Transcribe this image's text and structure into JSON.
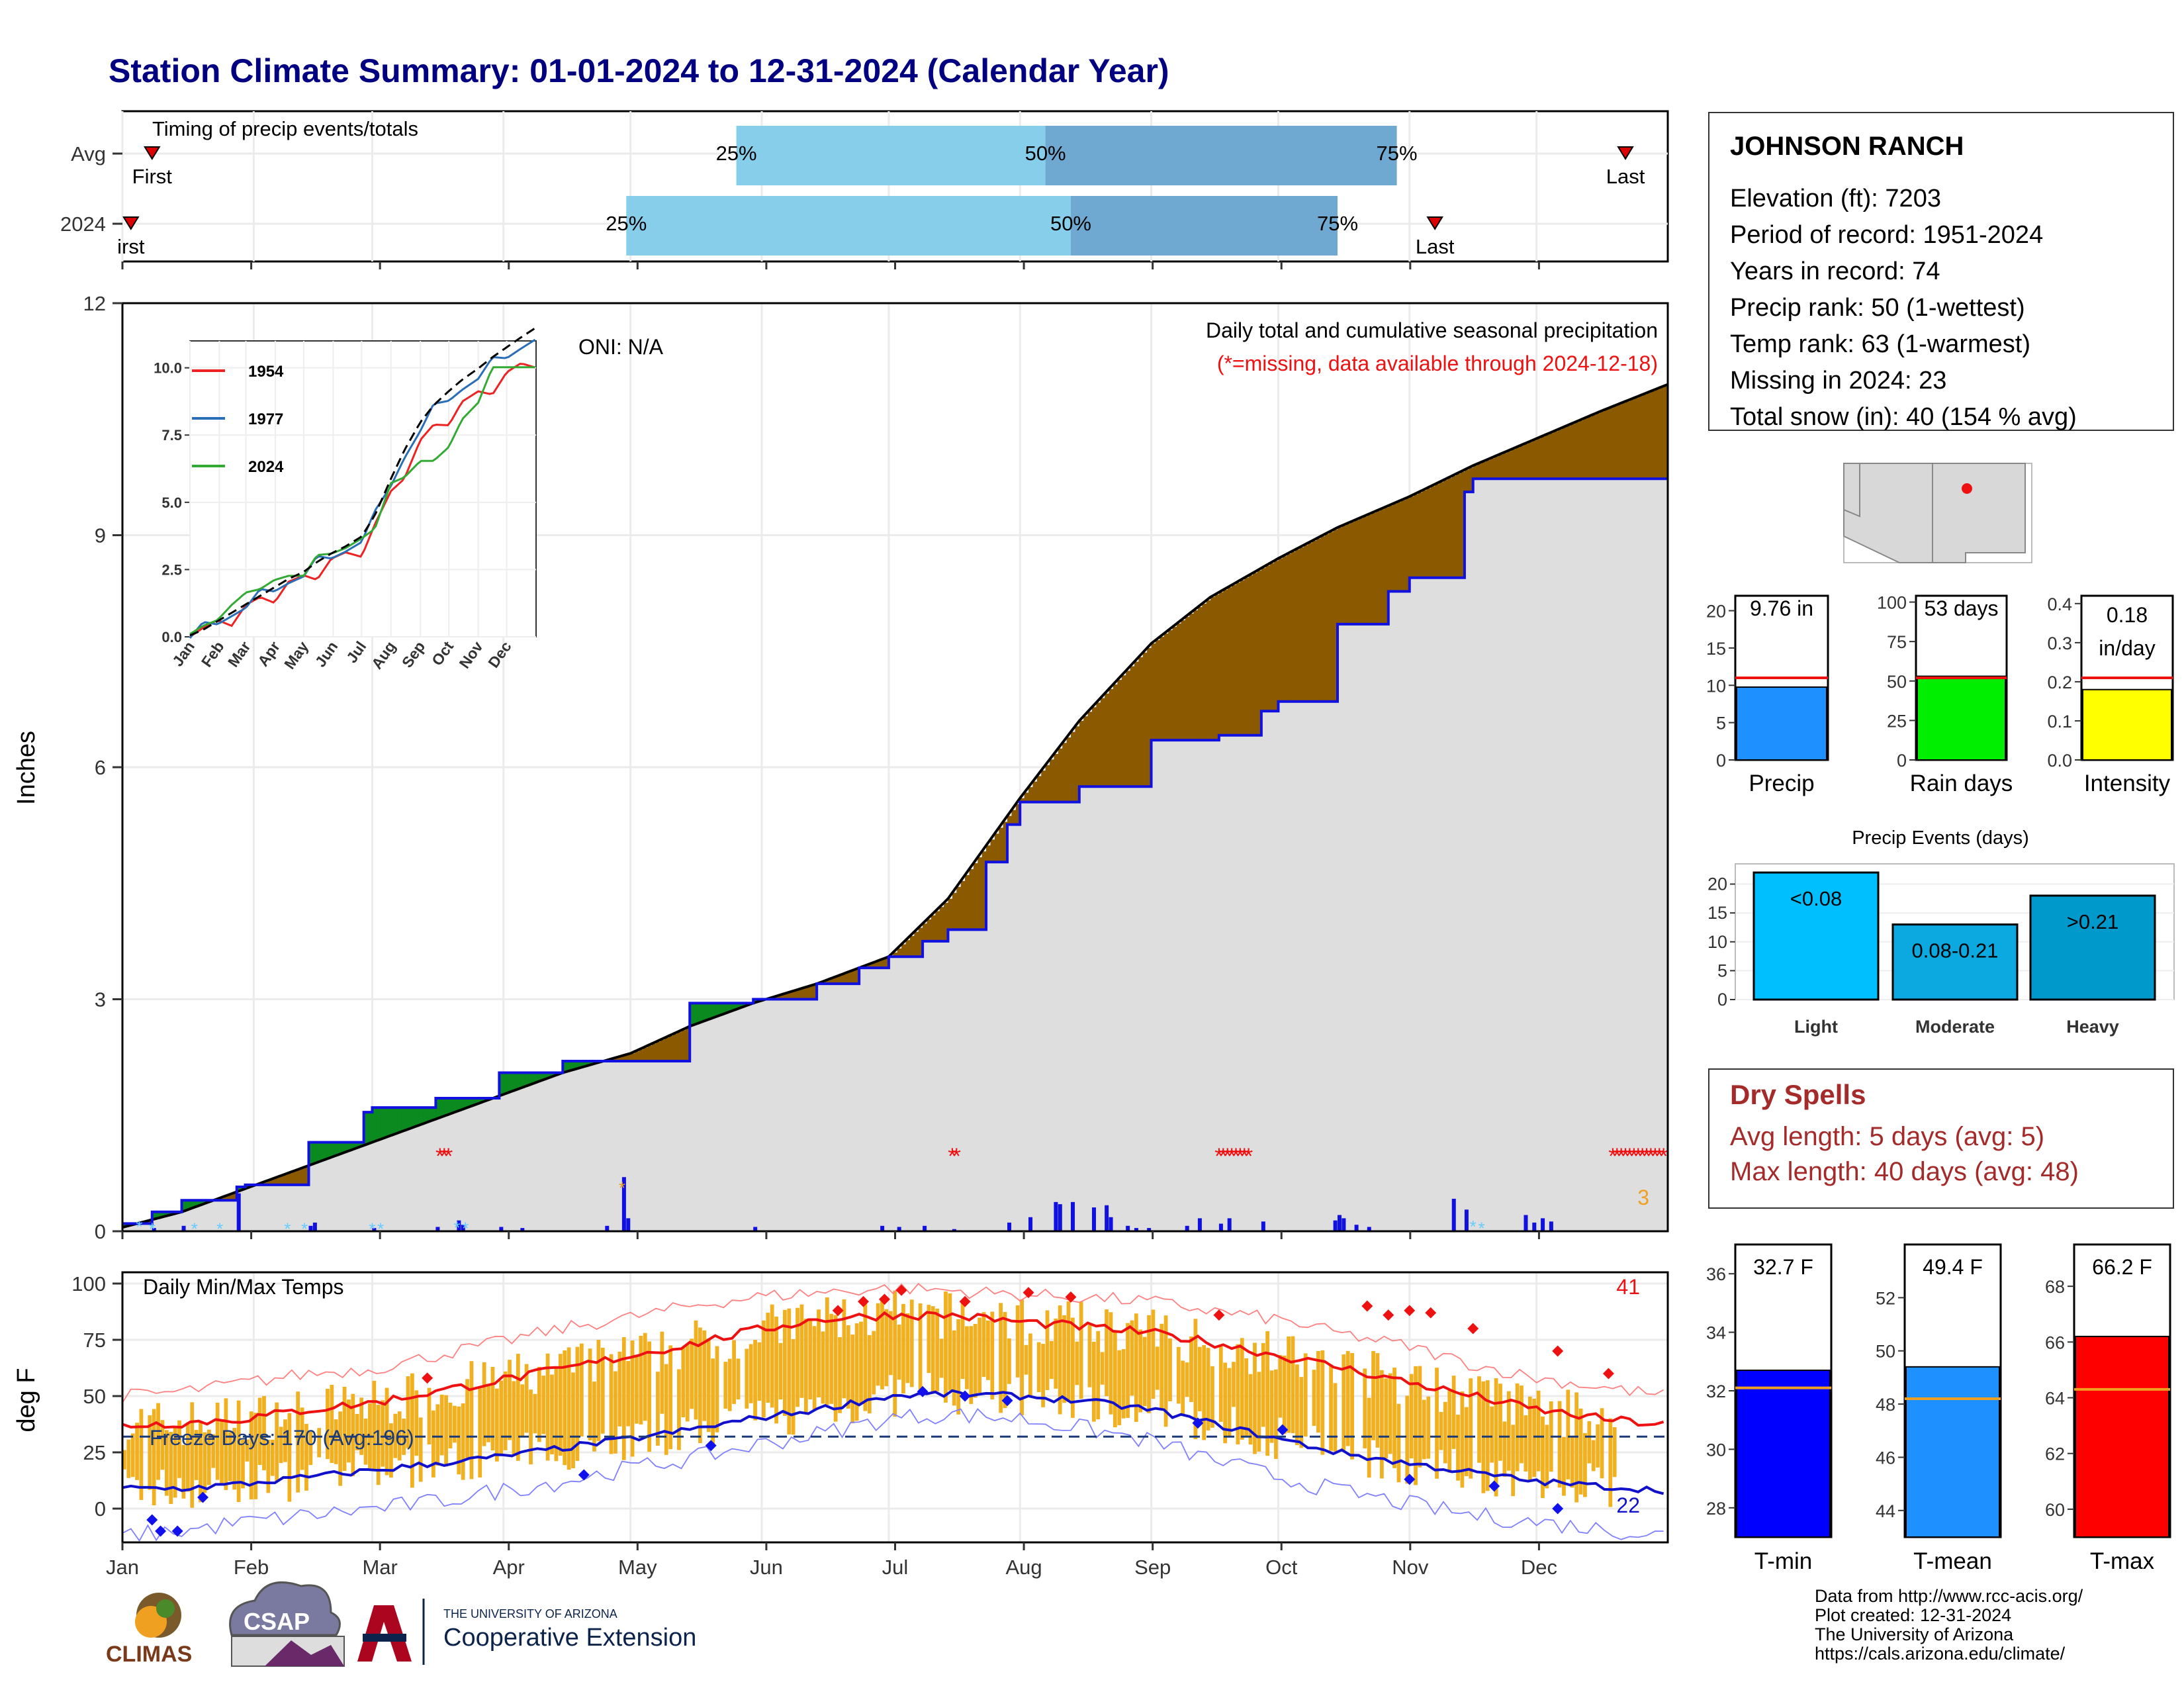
{
  "header": {
    "title": "Station Climate Summary: 01-01-2024 to 12-31-2024 (Calendar Year)"
  },
  "colors": {
    "title": "#000080",
    "green": "#0a8a1f",
    "brown": "#8b5a00",
    "gray": "#dedede",
    "blue": "#1010e0",
    "red": "#ee1111",
    "orange": "#f0b020"
  },
  "timing": {
    "label": "Timing of precip events/totals",
    "rows": [
      {
        "name": "Avg",
        "p25": 146,
        "p50": 219,
        "p75": 302,
        "first_label": "First",
        "first_day": 8,
        "last_label": "Last",
        "last_day": 356
      },
      {
        "name": "2024",
        "p25": 120,
        "p50": 225,
        "p75": 288,
        "first_label": "irst",
        "first_day": 3,
        "last_label": "Last",
        "last_day": 311
      }
    ],
    "p25_label": "25%",
    "p50_label": "50%",
    "p75_label": "75%"
  },
  "station": {
    "name": "JOHNSON RANCH",
    "lines": [
      "Elevation (ft): 7203",
      "Period of record: 1951-2024",
      "Years in record: 74",
      "Precip rank: 50 (1-wettest)",
      "Temp rank: 63 (1-warmest)",
      "Missing in 2024: 23",
      "Total snow (in): 40 (154 % avg)"
    ]
  },
  "precip_panel": {
    "ylabel": "Inches",
    "subtitle": "Daily total and cumulative seasonal precipitation",
    "missing_note": "(*=missing, data available through 2024-12-18)",
    "oni": "ONI: N/A",
    "corner_count": "3",
    "yticks": [
      "0",
      "3",
      "6",
      "9",
      "12"
    ]
  },
  "temp_panel": {
    "title": "Daily Min/Max Temps",
    "ylabel": "deg F",
    "freeze": "Freeze Days: 170 (Avg:196)",
    "hot_count": "41",
    "cold_count": "22",
    "yticks": [
      "0",
      "25",
      "50",
      "75",
      "100"
    ]
  },
  "months": [
    "Jan",
    "Feb",
    "Mar",
    "Apr",
    "May",
    "Jun",
    "Jul",
    "Aug",
    "Sep",
    "Oct",
    "Nov",
    "Dec"
  ],
  "inset": {
    "series": [
      "1954",
      "1977",
      "2024"
    ],
    "months": [
      "Jan",
      "Feb",
      "Mar",
      "Apr",
      "May",
      "Jun",
      "Jul",
      "Aug",
      "Sep",
      "Oct",
      "Nov",
      "Dec"
    ],
    "yticks": [
      "0.0",
      "2.5",
      "5.0",
      "7.5",
      "10.0"
    ]
  },
  "mini_bars": [
    {
      "label": "Precip",
      "value_label": "9.76 in",
      "value": 9.76,
      "avg": 11,
      "ymax": 22,
      "ticks": [
        "0",
        "5",
        "10",
        "15",
        "20"
      ],
      "color": "#1e90ff"
    },
    {
      "label": "Rain days",
      "value_label": "53 days",
      "value": 53,
      "avg": 52,
      "ymax": 104,
      "ticks": [
        "0",
        "25",
        "50",
        "75",
        "100"
      ],
      "color": "#00ee00"
    },
    {
      "label": "Intensity",
      "value_label": "0.18",
      "value_label2": "in/day",
      "value": 0.18,
      "avg": 0.21,
      "ymax": 0.42,
      "ticks": [
        "0.0",
        "0.1",
        "0.2",
        "0.3",
        "0.4"
      ],
      "color": "#ffff00"
    }
  ],
  "events": {
    "title": "Precip Events (days)",
    "bars": [
      {
        "cat": "Light",
        "label": "<0.08",
        "value": 22,
        "color": "#00bfff"
      },
      {
        "cat": "Moderate",
        "label": "0.08-0.21",
        "value": 13,
        "color": "#0ca8e0"
      },
      {
        "cat": "Heavy",
        "label": ">0.21",
        "value": 18,
        "color": "#0099cc"
      }
    ],
    "ticks": [
      "0",
      "5",
      "10",
      "15",
      "20"
    ]
  },
  "dry_spells": {
    "title": "Dry Spells",
    "avg": "Avg length: 5 days (avg: 5)",
    "max": "Max length: 40 days (avg: 48)"
  },
  "temp_bars": [
    {
      "label": "T-min",
      "value_label": "32.7 F",
      "value": 32.7,
      "avg": 32.1,
      "min": 27,
      "max": 37,
      "ticks": [
        "28",
        "30",
        "32",
        "34",
        "36"
      ],
      "color": "#0000ff"
    },
    {
      "label": "T-mean",
      "value_label": "49.4 F",
      "value": 49.4,
      "avg": 48.2,
      "min": 43,
      "max": 54,
      "ticks": [
        "44",
        "46",
        "48",
        "50",
        "52"
      ],
      "color": "#1e90ff"
    },
    {
      "label": "T-max",
      "value_label": "66.2 F",
      "value": 66.2,
      "avg": 64.3,
      "min": 59,
      "max": 69.5,
      "ticks": [
        "60",
        "62",
        "64",
        "66",
        "68"
      ],
      "color": "#ff0000"
    }
  ],
  "credits": [
    "Data from http://www.rcc-acis.org/",
    "Plot created: 12-31-2024",
    "The University of Arizona",
    "https://cals.arizona.edu/climate/"
  ],
  "logos": {
    "climas": "CLIMAS",
    "csap": "CSAP",
    "ua_small": "THE UNIVERSITY OF ARIZONA",
    "ua_big": "Cooperative Extension"
  },
  "chart_data": [
    {
      "type": "area",
      "title": "Daily total and cumulative seasonal precipitation",
      "ylabel": "Inches",
      "ylim": [
        0,
        12
      ],
      "x_days": [
        1,
        15,
        30,
        45,
        60,
        75,
        90,
        105,
        121,
        135,
        150,
        165,
        182,
        196,
        213,
        227,
        244,
        258,
        274,
        288,
        305,
        320,
        335,
        350,
        366
      ],
      "series": [
        {
          "name": "Average cumulative",
          "values": [
            0.05,
            0.25,
            0.55,
            0.85,
            1.15,
            1.45,
            1.75,
            2.05,
            2.3,
            2.65,
            2.95,
            3.2,
            3.55,
            4.3,
            5.6,
            6.6,
            7.6,
            8.2,
            8.7,
            9.1,
            9.5,
            9.9,
            10.25,
            10.6,
            10.95
          ]
        },
        {
          "name": "2024 cumulative",
          "values": [
            0.1,
            0.4,
            0.6,
            1.15,
            1.6,
            1.72,
            2.05,
            2.2,
            2.2,
            2.95,
            3.0,
            3.2,
            3.55,
            3.9,
            5.55,
            5.75,
            6.35,
            6.35,
            6.85,
            7.85,
            8.45,
            9.73,
            9.73,
            9.73,
            9.73
          ]
        }
      ]
    },
    {
      "type": "line",
      "title": "Daily Min/Max Temps",
      "ylabel": "deg F",
      "ylim": [
        -15,
        105
      ],
      "x_days": [
        1,
        15,
        30,
        45,
        60,
        75,
        90,
        105,
        121,
        135,
        150,
        165,
        182,
        196,
        213,
        227,
        244,
        258,
        274,
        288,
        305,
        320,
        335,
        350,
        366
      ],
      "series": [
        {
          "name": "Avg max",
          "values": [
            37,
            38,
            40,
            44,
            47,
            52,
            57,
            62,
            68,
            73,
            79,
            84,
            86,
            86,
            83,
            81,
            78,
            74,
            68,
            63,
            56,
            50,
            44,
            40,
            37
          ]
        },
        {
          "name": "Avg min",
          "values": [
            9,
            9,
            11,
            14,
            17,
            20,
            23,
            27,
            31,
            35,
            40,
            44,
            50,
            51,
            50,
            48,
            44,
            38,
            31,
            25,
            20,
            16,
            12,
            10,
            8
          ]
        },
        {
          "name": "Record max",
          "values": [
            50,
            52,
            56,
            60,
            62,
            68,
            74,
            80,
            85,
            90,
            94,
            96,
            98,
            97,
            95,
            94,
            92,
            88,
            84,
            78,
            72,
            64,
            58,
            54,
            50
          ]
        },
        {
          "name": "Record min",
          "values": [
            -12,
            -10,
            -6,
            -3,
            0,
            3,
            8,
            12,
            18,
            22,
            28,
            33,
            40,
            42,
            40,
            36,
            30,
            22,
            14,
            8,
            2,
            -3,
            -6,
            -9,
            -12
          ]
        }
      ],
      "freeze_line": 32
    }
  ]
}
